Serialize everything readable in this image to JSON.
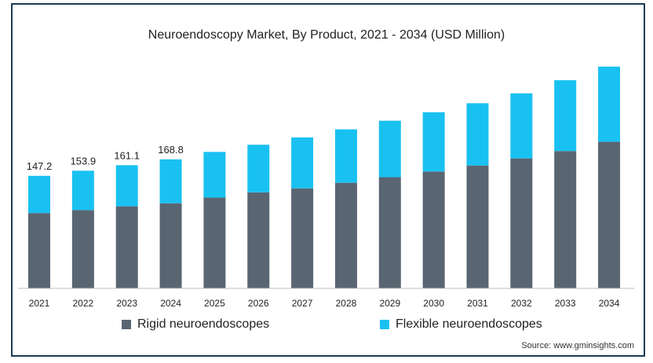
{
  "colors": {
    "rigid": "#5a6572",
    "flexible": "#19c1f1",
    "border": "#1f3a52"
  },
  "legend": {
    "rigid_label": "Rigid neuroendoscopes",
    "flexible_label": "Flexible neuroendoscopes"
  },
  "source": "Source: www.gminsights.com",
  "chart_data": {
    "type": "bar",
    "stacked": true,
    "title": "Neuroendoscopy Market, By Product, 2021 - 2034 (USD Million)",
    "xlabel": "",
    "ylabel": "",
    "categories": [
      "2021",
      "2022",
      "2023",
      "2024",
      "2025",
      "2026",
      "2027",
      "2028",
      "2029",
      "2030",
      "2031",
      "2032",
      "2033",
      "2034"
    ],
    "series": [
      {
        "name": "Rigid neuroendoscopes",
        "values": [
          98.5,
          102.4,
          107.3,
          111.3,
          118.7,
          125.5,
          130.8,
          138.1,
          145.4,
          152.8,
          160.7,
          170.0,
          179.6,
          191.8
        ]
      },
      {
        "name": "Flexible neuroendoscopes",
        "values": [
          48.7,
          51.5,
          53.8,
          57.5,
          59.8,
          62.4,
          66.6,
          69.9,
          73.9,
          77.6,
          81.5,
          85.1,
          92.7,
          98.3
        ]
      }
    ],
    "data_labels": [
      "147.2",
      "153.9",
      "161.1",
      "168.8"
    ],
    "ylim": [
      0,
      295
    ],
    "grid": false,
    "legend_position": "bottom"
  }
}
